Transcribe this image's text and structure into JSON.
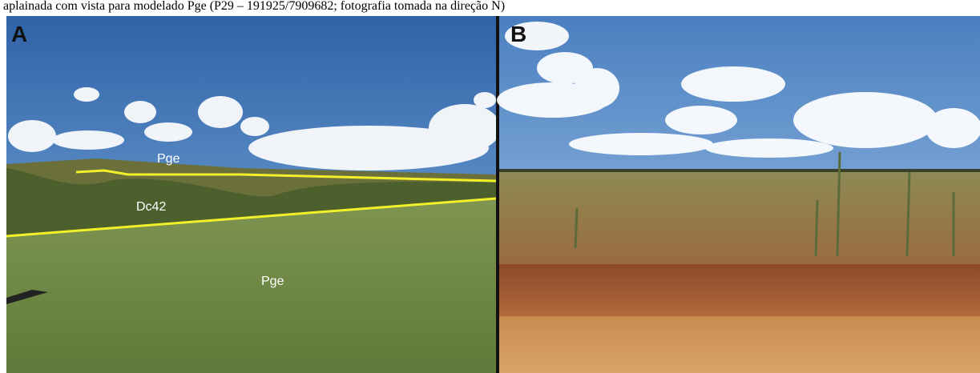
{
  "caption": "aplainada com vista para modelado Pge (P29 – 191925/7909682; fotografia tomada na direção N)",
  "panels": [
    {
      "label": "A",
      "annotations": [
        "Pge",
        "Dc42",
        "Pge"
      ]
    },
    {
      "label": "B"
    }
  ]
}
